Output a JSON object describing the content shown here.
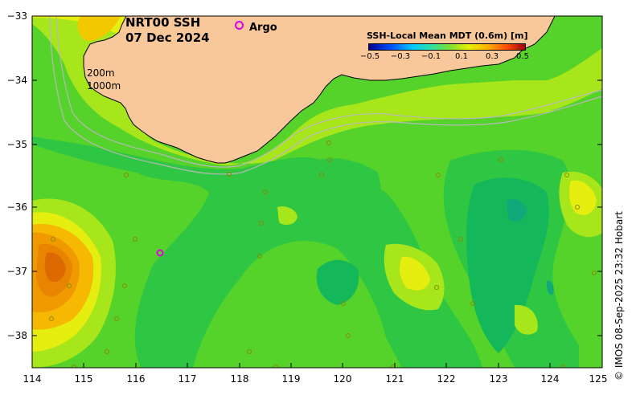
{
  "title": {
    "line1": "NRT00 SSH",
    "line2": "07 Dec 2024"
  },
  "legend": {
    "argo_label": "Argo",
    "argo_color": "#e000e0"
  },
  "depth_labels": [
    "200m",
    "1000m"
  ],
  "colorbar": {
    "title": "SSH-Local Mean MDT (0.6m) [m]",
    "ticks": [
      "−0.5",
      "−0.3",
      "−0.1",
      "0.1",
      "0.3",
      "0.5"
    ]
  },
  "axes": {
    "lat_ticks": [
      "−33",
      "−34",
      "−35",
      "−36",
      "−37",
      "−38"
    ],
    "lon_ticks": [
      "114",
      "115",
      "116",
      "117",
      "118",
      "119",
      "120",
      "121",
      "122",
      "123",
      "124",
      "125"
    ]
  },
  "credit": "© IMOS 08-Sep-2025 23:32 Hobart",
  "colors": {
    "land": "#f9c89a",
    "low": "#00c060",
    "mid": "#66dd22",
    "high": "#e08000"
  }
}
